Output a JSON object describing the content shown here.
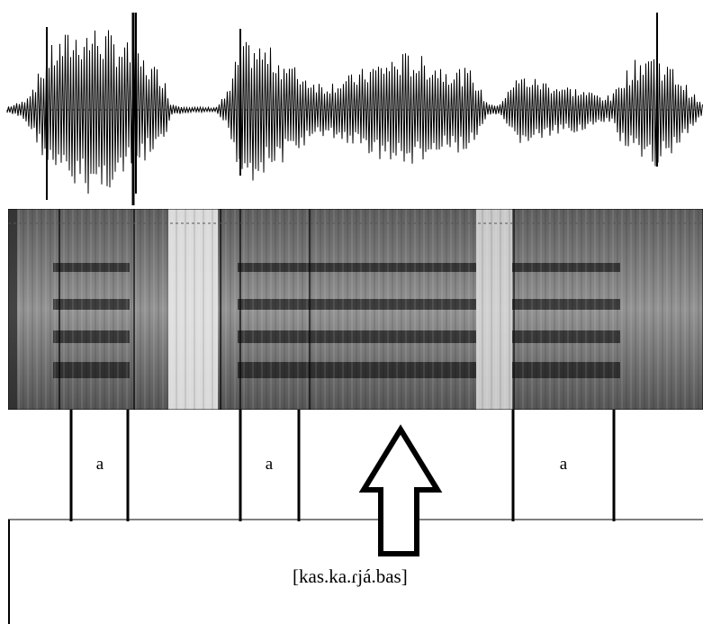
{
  "segments": [
    {
      "label": "a"
    },
    {
      "label": "a"
    },
    {
      "label": "a"
    }
  ],
  "transcription": "[kas.ka.ɾjá.bas]",
  "arrow_icon": "up-arrow-icon",
  "colors": {
    "ink": "#000000",
    "background": "#ffffff"
  }
}
